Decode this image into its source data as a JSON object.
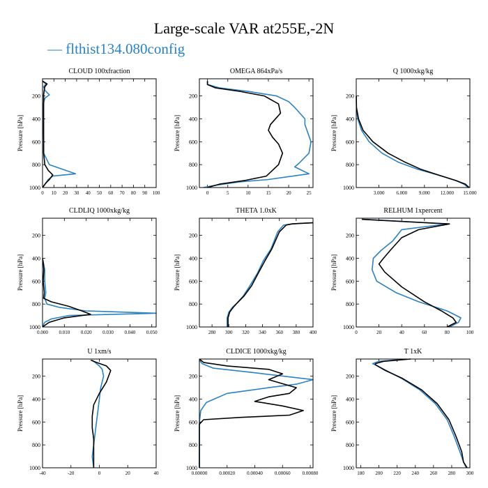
{
  "title": "Large-scale VAR at255E,-2N",
  "legend": "— flthist134.080config",
  "colors": {
    "config": "#2b82c0",
    "reference": "#000000"
  },
  "chart_data": [
    {
      "type": "line",
      "title": "CLOUD  100xfraction",
      "ylabel": "Pressure [hPa]",
      "xlim": [
        0,
        100
      ],
      "ylim": [
        1000,
        50
      ],
      "xticks": [
        "0",
        "10",
        "20",
        "30",
        "40",
        "50",
        "60",
        "70",
        "80",
        "90",
        "100"
      ],
      "yticks": [
        "200",
        "400",
        "600",
        "800",
        "1000"
      ],
      "series": [
        {
          "color": "config",
          "x": [
            0,
            3,
            1,
            2,
            6,
            2,
            1,
            0.5,
            0.5,
            1,
            1,
            6,
            29,
            9,
            5,
            3,
            0
          ],
          "y": [
            70,
            95,
            120,
            150,
            190,
            220,
            260,
            300,
            400,
            600,
            700,
            800,
            880,
            900,
            930,
            960,
            1000
          ]
        },
        {
          "color": "reference",
          "x": [
            0,
            4,
            2,
            1.5,
            1,
            1,
            1,
            1,
            2,
            5,
            9,
            6,
            3,
            0
          ],
          "y": [
            70,
            95,
            120,
            150,
            190,
            300,
            500,
            700,
            800,
            850,
            890,
            930,
            960,
            1000
          ]
        }
      ]
    },
    {
      "type": "line",
      "title": "OMEGA  864xPa/s",
      "ylabel": "Pressure [hPa]",
      "xlim": [
        -2,
        26
      ],
      "ylim": [
        1000,
        50
      ],
      "xticks": [
        "0",
        "5",
        "10",
        "15",
        "20",
        "25"
      ],
      "yticks": [
        "200",
        "400",
        "600",
        "800",
        "1000"
      ],
      "series": [
        {
          "color": "config",
          "x": [
            0,
            0,
            3,
            10,
            17,
            20,
            21.5,
            24,
            24,
            24.5,
            25.5,
            25,
            22.5,
            21.5,
            25,
            15,
            8,
            2,
            -1
          ],
          "y": [
            70,
            100,
            130,
            160,
            200,
            250,
            300,
            400,
            450,
            500,
            600,
            700,
            790,
            820,
            880,
            930,
            950,
            980,
            1000
          ]
        },
        {
          "color": "reference",
          "x": [
            0,
            0,
            2,
            8,
            14,
            17.5,
            18,
            15.5,
            15,
            16,
            17.5,
            18.5,
            17.5,
            14.5,
            9,
            3,
            0
          ],
          "y": [
            70,
            100,
            130,
            160,
            200,
            270,
            350,
            450,
            500,
            560,
            620,
            700,
            800,
            900,
            940,
            970,
            1000
          ]
        }
      ]
    },
    {
      "type": "line",
      "title": "Q  1000xkg/kg",
      "ylabel": "Pressure [hPa]",
      "xlim": [
        0,
        15
      ],
      "ylim": [
        1000,
        50
      ],
      "xticks": [
        "3.000",
        "6.000",
        "9.000",
        "12.000",
        "15.000"
      ],
      "yticks": [
        "200",
        "400",
        "600",
        "800",
        "1000"
      ],
      "series": [
        {
          "color": "config",
          "x": [
            0.005,
            0.03,
            0.2,
            0.7,
            1.7,
            3.4,
            5.6,
            8.1,
            11.3,
            13.2,
            14.2,
            14.8
          ],
          "y": [
            200,
            300,
            400,
            500,
            600,
            700,
            780,
            840,
            900,
            940,
            970,
            1000
          ]
        },
        {
          "color": "reference",
          "x": [
            0.005,
            0.03,
            0.3,
            0.9,
            2.2,
            4.2,
            6.5,
            8.5,
            11.3,
            13.2,
            14.4,
            14.9
          ],
          "y": [
            200,
            300,
            400,
            500,
            600,
            700,
            780,
            840,
            900,
            940,
            970,
            1000
          ]
        }
      ]
    },
    {
      "type": "line",
      "title": "CLDLIQ  1000xkg/kg",
      "ylabel": "Pressure [hPa]",
      "xlim": [
        0,
        0.052
      ],
      "ylim": [
        1000,
        50
      ],
      "xticks": [
        "0.000",
        "0.010",
        "0.020",
        "0.030",
        "0.040",
        "0.050"
      ],
      "yticks": [
        "200",
        "400",
        "600",
        "800",
        "1000"
      ],
      "series": [
        {
          "color": "config",
          "x": [
            0,
            0.0005,
            0.001,
            0.001,
            0.0015,
            0.001,
            0.002,
            0.008,
            0.02,
            0.052,
            0.012,
            0.004,
            0.001,
            0
          ],
          "y": [
            400,
            450,
            500,
            600,
            700,
            750,
            800,
            830,
            860,
            880,
            900,
            930,
            960,
            1000
          ]
        },
        {
          "color": "reference",
          "x": [
            0,
            0.0004,
            0.0006,
            0.0003,
            0.0008,
            0.0005,
            0.004,
            0.012,
            0.018,
            0.022,
            0.01,
            0.003,
            0
          ],
          "y": [
            400,
            450,
            500,
            600,
            700,
            750,
            780,
            820,
            860,
            890,
            920,
            960,
            1000
          ]
        }
      ]
    },
    {
      "type": "line",
      "title": "THETA  1.0xK",
      "ylabel": "Pressure [hPa]",
      "xlim": [
        265,
        400
      ],
      "ylim": [
        1000,
        50
      ],
      "xticks": [
        "280",
        "300",
        "320",
        "340",
        "360",
        "380",
        "400"
      ],
      "yticks": [
        "200",
        "400",
        "600",
        "800",
        "1000"
      ],
      "series": [
        {
          "color": "config",
          "x": [
            400,
            385,
            375,
            365,
            358,
            350,
            341,
            334,
            325,
            317,
            310,
            304,
            300,
            298,
            298
          ],
          "y": [
            90,
            95,
            100,
            110,
            170,
            320,
            420,
            530,
            640,
            730,
            790,
            830,
            870,
            920,
            1000
          ]
        },
        {
          "color": "reference",
          "x": [
            400,
            385,
            375,
            368,
            360,
            351,
            343,
            335,
            327,
            318,
            310,
            305,
            301,
            299,
            299
          ],
          "y": [
            90,
            95,
            100,
            110,
            170,
            320,
            420,
            530,
            640,
            730,
            790,
            830,
            870,
            920,
            1000
          ]
        }
      ]
    },
    {
      "type": "line",
      "title": "RELHUM  1xpercent",
      "ylabel": "Pressure [hPa]",
      "xlim": [
        0,
        100
      ],
      "ylim": [
        1000,
        50
      ],
      "xticks": [
        "0",
        "20",
        "40",
        "60",
        "80",
        "100"
      ],
      "yticks": [
        "200",
        "400",
        "600",
        "800",
        "1000"
      ],
      "series": [
        {
          "color": "config",
          "x": [
            5,
            80,
            40,
            32,
            22,
            15,
            14,
            18,
            35,
            55,
            80,
            92,
            90,
            82
          ],
          "y": [
            60,
            100,
            150,
            250,
            330,
            400,
            500,
            600,
            700,
            780,
            860,
            920,
            960,
            1000
          ]
        },
        {
          "color": "reference",
          "x": [
            5,
            82,
            55,
            40,
            30,
            24,
            20,
            25,
            40,
            60,
            75,
            85,
            88,
            80
          ],
          "y": [
            60,
            100,
            150,
            220,
            330,
            400,
            450,
            520,
            650,
            780,
            860,
            920,
            960,
            1000
          ]
        }
      ]
    },
    {
      "type": "line",
      "title": "U  1xm/s",
      "ylabel": "Pressure [hPa]",
      "xlim": [
        -40,
        40
      ],
      "ylim": [
        1000,
        50
      ],
      "xticks": [
        "-40",
        "-20",
        "0",
        "20",
        "40"
      ],
      "yticks": [
        "200",
        "400",
        "600",
        "800",
        "1000"
      ],
      "series": [
        {
          "color": "config",
          "x": [
            -5,
            -3,
            0,
            2,
            3,
            1,
            0,
            -1,
            -2,
            -3,
            -4,
            -5,
            -4
          ],
          "y": [
            60,
            80,
            110,
            140,
            200,
            300,
            400,
            500,
            600,
            700,
            800,
            900,
            1000
          ]
        },
        {
          "color": "reference",
          "x": [
            -6,
            -2,
            5,
            8,
            5,
            0,
            -4,
            -5,
            -5,
            -4,
            -4,
            -4
          ],
          "y": [
            60,
            80,
            110,
            150,
            250,
            350,
            450,
            550,
            650,
            750,
            850,
            1000
          ]
        }
      ]
    },
    {
      "type": "line",
      "title": "CLDICE  1000xkg/kg",
      "ylabel": "Pressure [hPa]",
      "xlim": [
        0,
        0.00082
      ],
      "ylim": [
        1000,
        50
      ],
      "xticks": [
        "0.00000",
        "0.00020",
        "0.00040",
        "0.00060",
        "0.00080"
      ],
      "yticks": [
        "200",
        "400",
        "600",
        "800",
        "1000"
      ],
      "series": [
        {
          "color": "config",
          "x": [
            0,
            2e-05,
            0.0001,
            0.0004,
            0.00082,
            0.0007,
            0.0005,
            0.0002,
            5e-05,
            1e-05,
            0,
            0
          ],
          "y": [
            60,
            90,
            130,
            170,
            230,
            270,
            300,
            350,
            430,
            500,
            600,
            1000
          ]
        },
        {
          "color": "reference",
          "x": [
            0,
            3e-05,
            0.0002,
            0.0005,
            0.0006,
            0.0005,
            0.0007,
            0.00065,
            0.0005,
            0.0004,
            0.0006,
            0.00075,
            0.00065,
            0.0003,
            3e-05,
            0,
            0
          ],
          "y": [
            50,
            80,
            110,
            140,
            180,
            230,
            300,
            350,
            380,
            420,
            460,
            500,
            540,
            560,
            580,
            620,
            1000
          ]
        }
      ]
    },
    {
      "type": "line",
      "title": "T  1xK",
      "ylabel": "Pressure [hPa]",
      "xlim": [
        175,
        300
      ],
      "ylim": [
        1000,
        50
      ],
      "xticks": [
        "180",
        "200",
        "220",
        "240",
        "260",
        "280",
        "300"
      ],
      "yticks": [
        "200",
        "400",
        "600",
        "800",
        "1000"
      ],
      "series": [
        {
          "color": "config",
          "x": [
            230,
            200,
            193,
            196,
            208,
            225,
            245,
            262,
            275,
            283,
            289,
            293,
            296
          ],
          "y": [
            50,
            70,
            90,
            100,
            150,
            220,
            320,
            440,
            580,
            730,
            860,
            950,
            1000
          ]
        },
        {
          "color": "reference",
          "x": [
            235,
            205,
            196,
            196,
            207,
            226,
            247,
            264,
            277,
            285,
            291,
            293,
            297
          ],
          "y": [
            50,
            70,
            90,
            100,
            150,
            220,
            320,
            440,
            580,
            730,
            860,
            950,
            1000
          ]
        }
      ]
    }
  ]
}
